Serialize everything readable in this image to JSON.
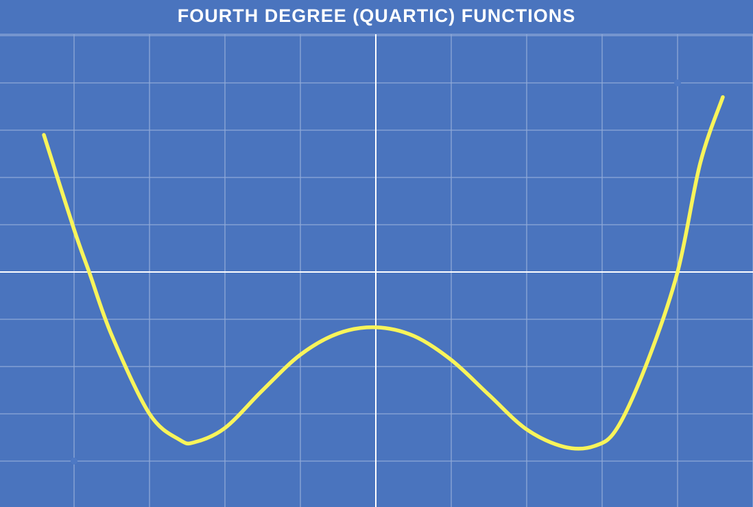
{
  "title": "FOURTH DEGREE (QUARTIC) FUNCTIONS",
  "colors": {
    "background": "#4a74be",
    "grid": "#8fa9d8",
    "axes": "#ffffff",
    "curve": "#f8f45a",
    "title": "#ffffff"
  },
  "chart_data": {
    "type": "line",
    "title": "FOURTH DEGREE (QUARTIC) FUNCTIONS",
    "xlabel": "",
    "ylabel": "",
    "grid": true,
    "axes_visible": true,
    "tick_labels_visible": false,
    "xlim": [
      -5,
      5
    ],
    "ylim": [
      -4.7,
      5
    ],
    "grid_step": 1,
    "series": [
      {
        "x": [
          -4.4,
          -4.0,
          -3.8,
          -3.5,
          -3.0,
          -2.6,
          -2.4,
          -2.0,
          -1.5,
          -1.0,
          -0.5,
          0.0,
          0.5,
          1.0,
          1.5,
          2.0,
          2.5,
          2.9,
          3.2,
          3.6,
          4.0,
          4.3,
          4.6
        ],
        "y": [
          2.9,
          0.9,
          0.0,
          -1.34,
          -3.0,
          -3.55,
          -3.6,
          -3.3,
          -2.5,
          -1.75,
          -1.3,
          -1.17,
          -1.35,
          -1.86,
          -2.6,
          -3.33,
          -3.7,
          -3.68,
          -3.3,
          -1.9,
          0.0,
          2.3,
          3.7
        ]
      }
    ],
    "markers": [
      {
        "x": 4.0,
        "y": 4.0
      },
      {
        "x": -4.0,
        "y": -4.0
      }
    ]
  }
}
